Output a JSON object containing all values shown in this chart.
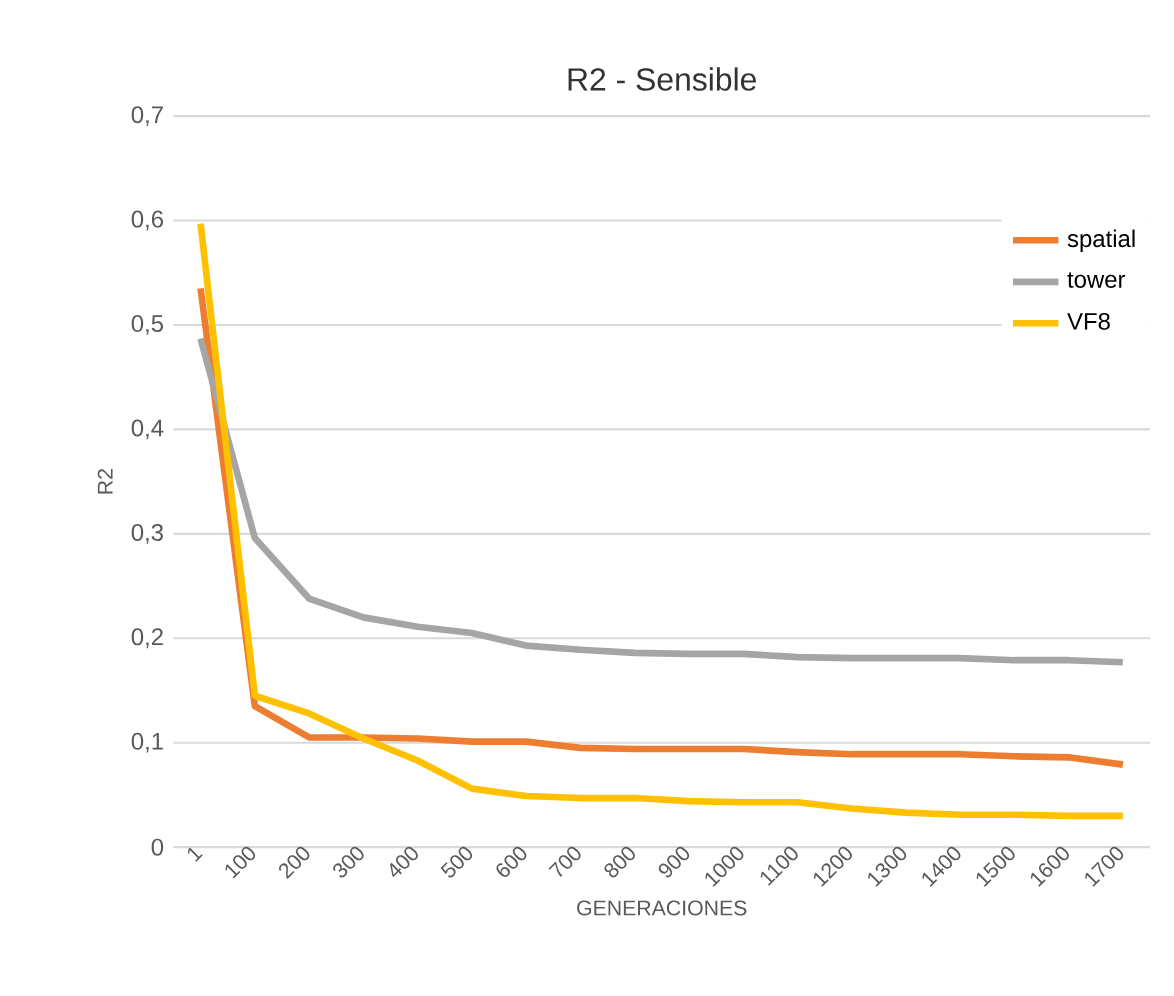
{
  "chart_data": {
    "type": "line",
    "title": "R2 - Sensible",
    "xlabel": "GENERACIONES",
    "ylabel": "R2",
    "categories": [
      "1",
      "100",
      "200",
      "300",
      "400",
      "500",
      "600",
      "700",
      "800",
      "900",
      "1000",
      "1100",
      "1200",
      "1300",
      "1400",
      "1500",
      "1600",
      "1700"
    ],
    "series": [
      {
        "name": "spatial",
        "color": "#ed7d31",
        "values": [
          0.535,
          0.135,
          0.105,
          0.105,
          0.104,
          0.101,
          0.101,
          0.095,
          0.094,
          0.094,
          0.094,
          0.091,
          0.089,
          0.089,
          0.089,
          0.087,
          0.086,
          0.079
        ]
      },
      {
        "name": "tower",
        "color": "#a5a5a5",
        "values": [
          0.487,
          0.296,
          0.238,
          0.22,
          0.211,
          0.205,
          0.193,
          0.189,
          0.186,
          0.185,
          0.185,
          0.182,
          0.181,
          0.181,
          0.181,
          0.179,
          0.179,
          0.177
        ]
      },
      {
        "name": "VF8",
        "color": "#ffc000",
        "values": [
          0.597,
          0.145,
          0.128,
          0.104,
          0.083,
          0.056,
          0.049,
          0.047,
          0.047,
          0.044,
          0.043,
          0.043,
          0.037,
          0.033,
          0.031,
          0.031,
          0.03,
          0.03
        ]
      }
    ],
    "ylim": [
      0,
      0.7
    ],
    "yticks": [
      {
        "value": 0,
        "label": "0"
      },
      {
        "value": 0.1,
        "label": "0,1"
      },
      {
        "value": 0.2,
        "label": "0,2"
      },
      {
        "value": 0.3,
        "label": "0,3"
      },
      {
        "value": 0.4,
        "label": "0,4"
      },
      {
        "value": 0.5,
        "label": "0,5"
      },
      {
        "value": 0.6,
        "label": "0,6"
      },
      {
        "value": 0.7,
        "label": "0,7"
      }
    ],
    "grid": "y",
    "legend": "top right",
    "marker": "none",
    "line_style": "solid"
  }
}
